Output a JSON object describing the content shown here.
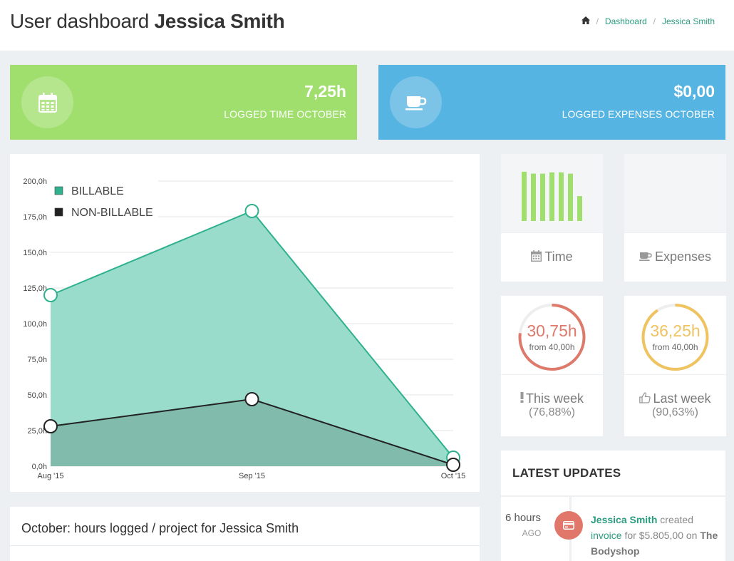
{
  "header": {
    "title_prefix": "User dashboard",
    "title_name": "Jessica Smith",
    "breadcrumb": [
      "Dashboard",
      "Jessica Smith"
    ]
  },
  "stats": {
    "time": {
      "value": "7,25h",
      "label": "LOGGED TIME OCTOBER",
      "color": "#a0df6e",
      "icon": "calendar-icon"
    },
    "expenses": {
      "value": "$0,00",
      "label": "LOGGED EXPENSES OCTOBER",
      "color": "#56b4e2",
      "icon": "coffee-icon"
    }
  },
  "chart_data": {
    "type": "area",
    "categories": [
      "Aug '15",
      "Sep '15",
      "Oct '15"
    ],
    "y_ticks": [
      "0,0h",
      "25,0h",
      "50,0h",
      "75,0h",
      "100,0h",
      "125,0h",
      "150,0h",
      "175,0h",
      "200,0h"
    ],
    "ylim": [
      0,
      200
    ],
    "legend_position": "top-left",
    "grid": true,
    "series": [
      {
        "name": "BILLABLE",
        "values": [
          120,
          179,
          6
        ],
        "color": "#2fb18e",
        "fill": "#9adccc"
      },
      {
        "name": "NON-BILLABLE",
        "values": [
          28,
          47,
          1
        ],
        "color": "#222222",
        "fill": "#7bb5a6"
      }
    ]
  },
  "project_panel": {
    "title": "October: hours logged / project for Jessica Smith"
  },
  "tiles": {
    "time": {
      "caption": "Time",
      "icon": "calendar-icon",
      "bars": [
        0.89,
        0.86,
        0.86,
        0.88,
        0.88,
        0.86,
        0.51
      ],
      "bar_color": "#a0df6e"
    },
    "expenses": {
      "caption": "Expenses",
      "icon": "coffee-icon"
    },
    "this_week": {
      "value": "30,75h",
      "from": "from 40,00h",
      "caption": "This week",
      "percent_text": "(76,88%)",
      "fraction": 0.7688,
      "color": "#dd7a6b",
      "icon": "exclamation-icon"
    },
    "last_week": {
      "value": "36,25h",
      "from": "from 40,00h",
      "caption": "Last week",
      "percent_text": "(90,63%)",
      "fraction": 0.9063,
      "color": "#efc35f",
      "icon": "thumbs-up-icon"
    }
  },
  "updates": {
    "title": "LATEST UPDATES",
    "items": [
      {
        "time": "6 hours",
        "ago": "AGO",
        "user": "Jessica Smith",
        "action": "created",
        "object": "invoice",
        "for_text": "for $5.805,00 on",
        "client": "The Bodyshop",
        "icon": "credit-card-icon",
        "badge_color": "#e0776a"
      }
    ]
  }
}
